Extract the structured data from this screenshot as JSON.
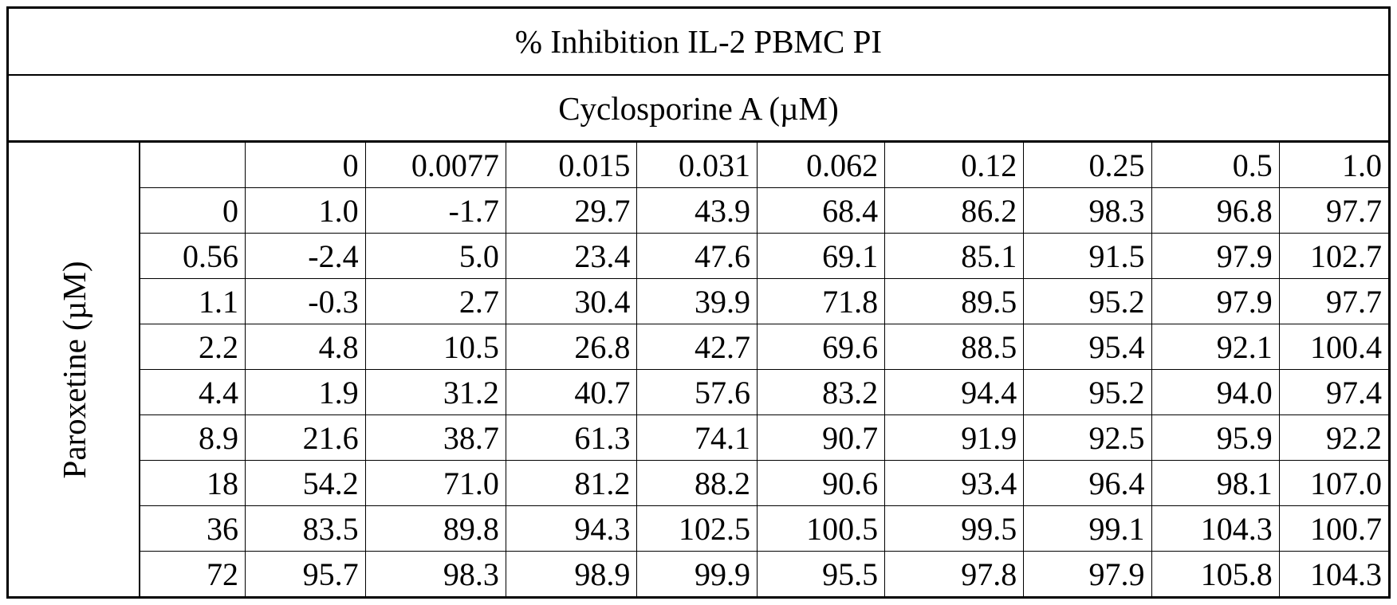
{
  "table": {
    "title": "% Inhibition IL-2  PBMC PI",
    "column_group_label": "Cyclosporine A (µM)",
    "row_group_label": "Paroxetine (µM)",
    "corner": "",
    "column_headers": [
      "0",
      "0.0077",
      "0.015",
      "0.031",
      "0.062",
      "0.12",
      "0.25",
      "0.5",
      "1.0"
    ],
    "rows": [
      {
        "header": "0",
        "values": [
          "1.0",
          "-1.7",
          "29.7",
          "43.9",
          "68.4",
          "86.2",
          "98.3",
          "96.8",
          "97.7"
        ]
      },
      {
        "header": "0.56",
        "values": [
          "-2.4",
          "5.0",
          "23.4",
          "47.6",
          "69.1",
          "85.1",
          "91.5",
          "97.9",
          "102.7"
        ]
      },
      {
        "header": "1.1",
        "values": [
          "-0.3",
          "2.7",
          "30.4",
          "39.9",
          "71.8",
          "89.5",
          "95.2",
          "97.9",
          "97.7"
        ]
      },
      {
        "header": "2.2",
        "values": [
          "4.8",
          "10.5",
          "26.8",
          "42.7",
          "69.6",
          "88.5",
          "95.4",
          "92.1",
          "100.4"
        ]
      },
      {
        "header": "4.4",
        "values": [
          "1.9",
          "31.2",
          "40.7",
          "57.6",
          "83.2",
          "94.4",
          "95.2",
          "94.0",
          "97.4"
        ]
      },
      {
        "header": "8.9",
        "values": [
          "21.6",
          "38.7",
          "61.3",
          "74.1",
          "90.7",
          "91.9",
          "92.5",
          "95.9",
          "92.2"
        ]
      },
      {
        "header": "18",
        "values": [
          "54.2",
          "71.0",
          "81.2",
          "88.2",
          "90.6",
          "93.4",
          "96.4",
          "98.1",
          "107.0"
        ]
      },
      {
        "header": "36",
        "values": [
          "83.5",
          "89.8",
          "94.3",
          "102.5",
          "100.5",
          "99.5",
          "99.1",
          "104.3",
          "100.7"
        ]
      },
      {
        "header": "72",
        "values": [
          "95.7",
          "98.3",
          "98.9",
          "99.9",
          "95.5",
          "97.8",
          "97.9",
          "105.8",
          "104.3"
        ]
      }
    ]
  }
}
